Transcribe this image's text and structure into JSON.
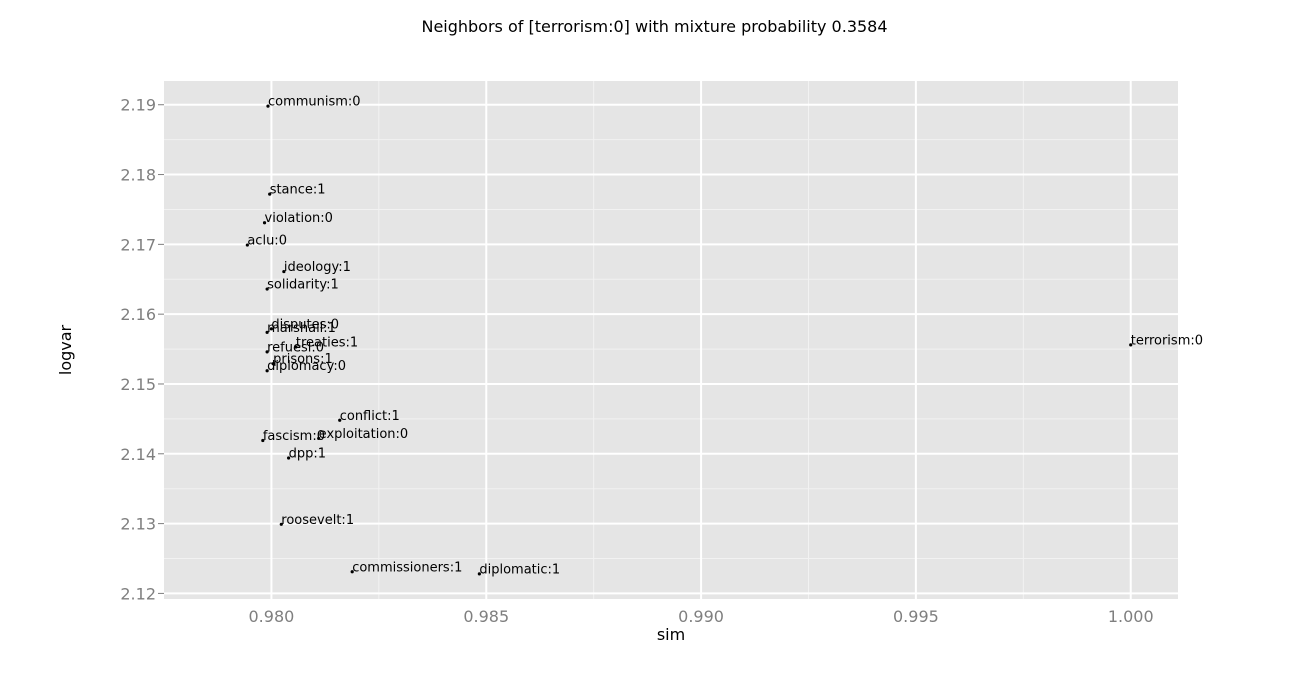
{
  "chart_data": {
    "type": "scatter",
    "title": "Neighbors of [terrorism:0] with mixture probability 0.3584",
    "xlabel": "sim",
    "ylabel": "logvar",
    "xlim": [
      0.9775,
      1.0011
    ],
    "ylim": [
      2.1192,
      2.1934
    ],
    "x_ticks": [
      0.98,
      0.985,
      0.99,
      0.995,
      1.0
    ],
    "x_tick_labels": [
      "0.980",
      "0.985",
      "0.990",
      "0.995",
      "1.000"
    ],
    "y_ticks": [
      2.12,
      2.13,
      2.14,
      2.15,
      2.16,
      2.17,
      2.18,
      2.19
    ],
    "y_tick_labels": [
      "2.12",
      "2.13",
      "2.14",
      "2.15",
      "2.16",
      "2.17",
      "2.18",
      "2.19"
    ],
    "grid": true,
    "legend": "none",
    "colors": {
      "panel": "#e5e5e5",
      "grid": "#ffffff",
      "point": "#000000",
      "tick": "#7f7f7f"
    },
    "points": [
      {
        "label": "communism:0",
        "x": 0.97992,
        "y": 2.1898
      },
      {
        "label": "stance:1",
        "x": 0.97996,
        "y": 2.1772
      },
      {
        "label": "violation:0",
        "x": 0.97984,
        "y": 2.1731
      },
      {
        "label": "aclu:0",
        "x": 0.97944,
        "y": 2.1699
      },
      {
        "label": "ideology:1",
        "x": 0.98029,
        "y": 2.1661
      },
      {
        "label": "solidarity:1",
        "x": 0.9799,
        "y": 2.1636
      },
      {
        "label": "disputes:0",
        "x": 0.98,
        "y": 2.1579
      },
      {
        "label": "marshall:1",
        "x": 0.9799,
        "y": 2.1574
      },
      {
        "label": "treaties:1",
        "x": 0.98057,
        "y": 2.1553
      },
      {
        "label": "refuesl:0",
        "x": 0.9799,
        "y": 2.1546
      },
      {
        "label": "prisons:1",
        "x": 0.98004,
        "y": 2.1529
      },
      {
        "label": "diplomacy:0",
        "x": 0.9799,
        "y": 2.1519
      },
      {
        "label": "terrorism:0",
        "x": 1.0,
        "y": 2.1556
      },
      {
        "label": "conflict:1",
        "x": 0.98159,
        "y": 2.1448
      },
      {
        "label": "exploitation:0",
        "x": 0.9811,
        "y": 2.1422
      },
      {
        "label": "fascism:0",
        "x": 0.9798,
        "y": 2.1419
      },
      {
        "label": "dpp:1",
        "x": 0.9804,
        "y": 2.1394
      },
      {
        "label": "roosevelt:1",
        "x": 0.98023,
        "y": 2.1299
      },
      {
        "label": "commissioners:1",
        "x": 0.98188,
        "y": 2.1231
      },
      {
        "label": "diplomatic:1",
        "x": 0.98484,
        "y": 2.1228
      }
    ]
  }
}
